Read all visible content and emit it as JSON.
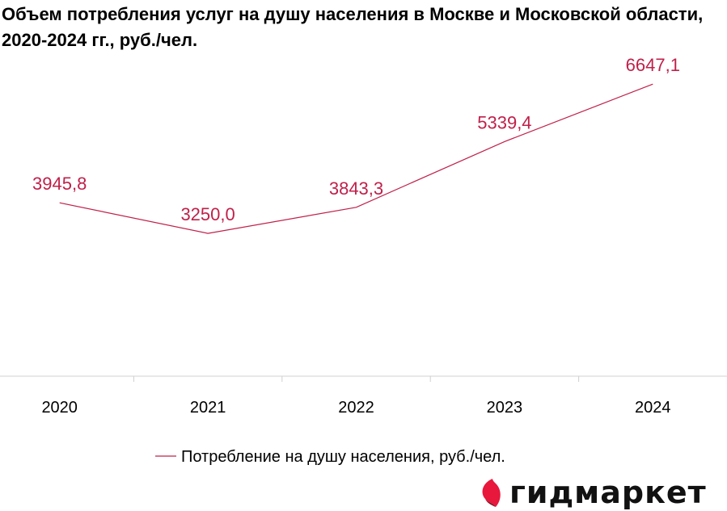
{
  "chart_data": {
    "type": "line",
    "title": "Объем потребления услуг на душу населения в Москве и Московской области, 2020-2024 гг., руб./чел.",
    "categories": [
      "2020",
      "2021",
      "2022",
      "2023",
      "2024"
    ],
    "series": [
      {
        "name": "Потребление на душу населения, руб./чел.",
        "values": [
          3945.8,
          3250.0,
          3843.3,
          5339.4,
          6647.1
        ],
        "labels": [
          "3945,8",
          "3250,0",
          "3843,3",
          "5339,4",
          "6647,1"
        ]
      }
    ],
    "ylim": [
      0,
      7000
    ],
    "grid": false,
    "legend_position": "bottom",
    "line_color": "#c0204a"
  },
  "brand": {
    "name": "гидмаркет",
    "logo_icon": "gidmarket-logo-icon",
    "logo_color": "#e8173c"
  }
}
